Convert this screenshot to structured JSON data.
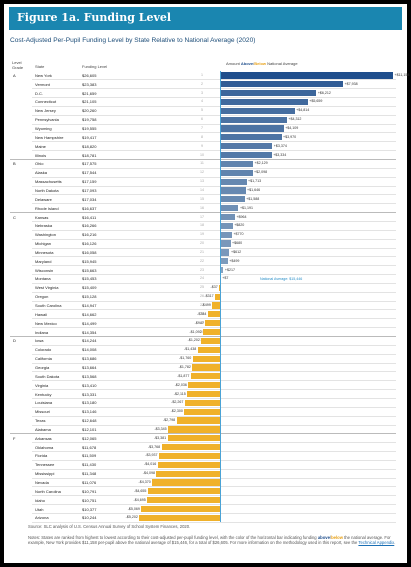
{
  "banner": {
    "title": "Figure 1a. Funding Level"
  },
  "colors": {
    "above": "#2d5a92",
    "below": "#f0b12a",
    "banner": "#1a86b0",
    "national_line": "#4aa3d6"
  },
  "footer": {
    "source": "Source: SLC analysis of U.S. Census Annual Survey of School System Finances, 2020.",
    "notes_pre": "Notes: States are ranked from highest to lowest according to their cost-adjusted per-pupil funding level, with the color of the horizontal bar indicating funding ",
    "notes_above": "above",
    "notes_slash": "/",
    "notes_below": "below",
    "notes_mid": " the national average. For example, New York provides $11,158 per-pupil above the national average of $15,446, for a total of $26,605. For more information on the methodology used in this report, see the ",
    "notes_link": "Technical Appendix",
    "notes_end": "."
  },
  "chart_data": {
    "type": "bar",
    "title": "Cost-Adjusted Per-Pupil Funding Level by State Relative to National Average (2020)",
    "columns": {
      "grade": "Level Grade",
      "state": "State",
      "funding": "Funding Level",
      "amount_pre": "Amount ",
      "amount_above": "Above",
      "amount_slash": "/",
      "amount_below": "Below",
      "amount_post": " National Average"
    },
    "national_average_label": "National Average: $15,446",
    "national_average": 15446,
    "grades": [
      {
        "grade": "A",
        "start": 0
      },
      {
        "grade": "B",
        "start": 10
      },
      {
        "grade": "C",
        "start": 16
      },
      {
        "grade": "D",
        "start": 30
      },
      {
        "grade": "F",
        "start": 41
      }
    ],
    "rows": [
      {
        "rank": "1",
        "state": "New York",
        "funding": "$26,605",
        "diff": 11158,
        "label": "+$11,158"
      },
      {
        "rank": "2",
        "state": "Vermont",
        "funding": "$23,383",
        "diff": 7938,
        "label": "+$7,938"
      },
      {
        "rank": "3",
        "state": "D.C.",
        "funding": "$21,659",
        "diff": 6212,
        "label": "+$6,212"
      },
      {
        "rank": "4",
        "state": "Connecticut",
        "funding": "$21,105",
        "diff": 5659,
        "label": "+$5,659"
      },
      {
        "rank": "5",
        "state": "New Jersey",
        "funding": "$20,260",
        "diff": 4814,
        "label": "+$4,814"
      },
      {
        "rank": "6",
        "state": "Pennsylvania",
        "funding": "$19,758",
        "diff": 4312,
        "label": "+$4,312"
      },
      {
        "rank": "7",
        "state": "Wyoming",
        "funding": "$19,555",
        "diff": 4109,
        "label": "+$4,109"
      },
      {
        "rank": "8",
        "state": "New Hampshire",
        "funding": "$19,417",
        "diff": 3970,
        "label": "+$3,970"
      },
      {
        "rank": "9",
        "state": "Maine",
        "funding": "$18,820",
        "diff": 3374,
        "label": "+$3,374"
      },
      {
        "rank": "10",
        "state": "Illinois",
        "funding": "$18,781",
        "diff": 3334,
        "label": "+$3,334"
      },
      {
        "rank": "11",
        "state": "Ohio",
        "funding": "$17,575",
        "diff": 2129,
        "label": "+$2,129"
      },
      {
        "rank": "12",
        "state": "Alaska",
        "funding": "$17,544",
        "diff": 2098,
        "label": "+$2,098"
      },
      {
        "rank": "13",
        "state": "Massachusetts",
        "funding": "$17,159",
        "diff": 1713,
        "label": "+$1,713"
      },
      {
        "rank": "14",
        "state": "North Dakota",
        "funding": "$17,093",
        "diff": 1646,
        "label": "+$1,646"
      },
      {
        "rank": "15",
        "state": "Delaware",
        "funding": "$17,034",
        "diff": 1588,
        "label": "+$1,588"
      },
      {
        "rank": "16",
        "state": "Rhode Island",
        "funding": "$16,637",
        "diff": 1191,
        "label": "+$1,191"
      },
      {
        "rank": "17",
        "state": "Kansas",
        "funding": "$16,411",
        "diff": 964,
        "label": "+$964"
      },
      {
        "rank": "18",
        "state": "Nebraska",
        "funding": "$16,266",
        "diff": 820,
        "label": "+$820"
      },
      {
        "rank": "19",
        "state": "Washington",
        "funding": "$16,216",
        "diff": 770,
        "label": "+$770"
      },
      {
        "rank": "20",
        "state": "Michigan",
        "funding": "$16,126",
        "diff": 680,
        "label": "+$680"
      },
      {
        "rank": "21",
        "state": "Minnesota",
        "funding": "$16,058",
        "diff": 612,
        "label": "+$612"
      },
      {
        "rank": "22",
        "state": "Maryland",
        "funding": "$15,945",
        "diff": 499,
        "label": "+$499"
      },
      {
        "rank": "23",
        "state": "Wisconsin",
        "funding": "$15,663",
        "diff": 217,
        "label": "+$217"
      },
      {
        "rank": "24",
        "state": "Montana",
        "funding": "$15,453",
        "diff": 7,
        "label": "+$7"
      },
      {
        "rank": "25",
        "state": "West Virginia",
        "funding": "$15,409",
        "diff": -37,
        "label": "-$37"
      },
      {
        "rank": "26",
        "state": "Oregon",
        "funding": "$15,128",
        "diff": -317,
        "label": "-$317"
      },
      {
        "rank": "27",
        "state": "South Carolina",
        "funding": "$14,947",
        "diff": -499,
        "label": "-$499"
      },
      {
        "rank": "28",
        "state": "Hawaii",
        "funding": "$14,662",
        "diff": -784,
        "label": "-$784"
      },
      {
        "rank": "29",
        "state": "New Mexico",
        "funding": "$14,499",
        "diff": -947,
        "label": "-$947"
      },
      {
        "rank": "30",
        "state": "Indiana",
        "funding": "$14,354",
        "diff": -1092,
        "label": "-$1,092"
      },
      {
        "rank": "31",
        "state": "Iowa",
        "funding": "$14,244",
        "diff": -1202,
        "label": "-$1,202"
      },
      {
        "rank": "32",
        "state": "Colorado",
        "funding": "$14,008",
        "diff": -1438,
        "label": "-$1,438"
      },
      {
        "rank": "33",
        "state": "California",
        "funding": "$13,686",
        "diff": -1760,
        "label": "-$1,760"
      },
      {
        "rank": "34",
        "state": "Georgia",
        "funding": "$13,664",
        "diff": -1782,
        "label": "-$1,782"
      },
      {
        "rank": "35",
        "state": "South Dakota",
        "funding": "$13,568",
        "diff": -1877,
        "label": "-$1,877"
      },
      {
        "rank": "36",
        "state": "Virginia",
        "funding": "$13,410",
        "diff": -2036,
        "label": "-$2,036"
      },
      {
        "rank": "37",
        "state": "Kentucky",
        "funding": "$13,331",
        "diff": -2115,
        "label": "-$2,115"
      },
      {
        "rank": "38",
        "state": "Louisiana",
        "funding": "$13,180",
        "diff": -2267,
        "label": "-$2,267"
      },
      {
        "rank": "39",
        "state": "Missouri",
        "funding": "$13,146",
        "diff": -2300,
        "label": "-$2,300"
      },
      {
        "rank": "40",
        "state": "Texas",
        "funding": "$12,648",
        "diff": -2798,
        "label": "-$2,798"
      },
      {
        "rank": "41",
        "state": "Alabama",
        "funding": "$12,101",
        "diff": -3345,
        "label": "-$3,345"
      },
      {
        "rank": "42",
        "state": "Arkansas",
        "funding": "$12,065",
        "diff": -3381,
        "label": "-$3,381"
      },
      {
        "rank": "43",
        "state": "Oklahoma",
        "funding": "$11,678",
        "diff": -3768,
        "label": "-$3,768"
      },
      {
        "rank": "44",
        "state": "Florida",
        "funding": "$11,509",
        "diff": -3937,
        "label": "-$3,937"
      },
      {
        "rank": "45",
        "state": "Tennessee",
        "funding": "$11,430",
        "diff": -4016,
        "label": "-$4,016"
      },
      {
        "rank": "46",
        "state": "Mississippi",
        "funding": "$11,348",
        "diff": -4098,
        "label": "-$4,098"
      },
      {
        "rank": "47",
        "state": "Nevada",
        "funding": "$11,076",
        "diff": -4370,
        "label": "-$4,370"
      },
      {
        "rank": "48",
        "state": "North Carolina",
        "funding": "$10,791",
        "diff": -4655,
        "label": "-$4,655"
      },
      {
        "rank": "49",
        "state": "Idaho",
        "funding": "$10,751",
        "diff": -4695,
        "label": "-$4,695"
      },
      {
        "rank": "50",
        "state": "Utah",
        "funding": "$10,377",
        "diff": -5069,
        "label": "-$5,069"
      },
      {
        "rank": "51",
        "state": "Arizona",
        "funding": "$10,244",
        "diff": -5202,
        "label": "-$5,202"
      }
    ]
  }
}
